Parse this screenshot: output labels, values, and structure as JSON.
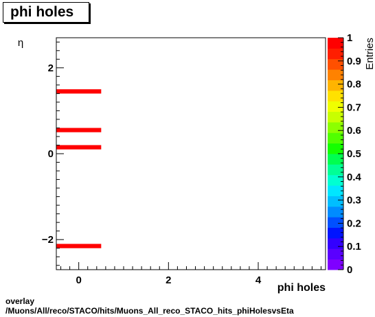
{
  "title": "phi holes",
  "footer": {
    "line1": "overlay",
    "line2": "/Muons/All/reco/STACO/hits/Muons_All_reco_STACO_hits_phiHolesvsEta"
  },
  "chart_data": {
    "type": "heatmap",
    "xlabel": "phi holes",
    "ylabel": "η",
    "zlabel": "Entries",
    "xlim": [
      -0.5,
      5.5
    ],
    "ylim": [
      -2.7,
      2.7
    ],
    "zlim": [
      0,
      1
    ],
    "x_ticks": [
      0,
      2,
      4
    ],
    "y_ticks": [
      -2,
      0,
      2
    ],
    "z_ticks": [
      0,
      0.1,
      0.2,
      0.3,
      0.4,
      0.5,
      0.6,
      0.7,
      0.8,
      0.9,
      1
    ],
    "bins": [
      {
        "x": [
          -0.5,
          0.5
        ],
        "y": [
          1.4,
          1.5
        ],
        "value": 1
      },
      {
        "x": [
          -0.5,
          0.5
        ],
        "y": [
          0.5,
          0.6
        ],
        "value": 1
      },
      {
        "x": [
          -0.5,
          0.5
        ],
        "y": [
          0.1,
          0.2
        ],
        "value": 1
      },
      {
        "x": [
          -0.5,
          0.5
        ],
        "y": [
          -2.2,
          -2.1
        ],
        "value": 1
      }
    ],
    "palette": [
      "#7f00ff",
      "#5a00ff",
      "#3300ff",
      "#0014ff",
      "#0050ff",
      "#008cff",
      "#00beff",
      "#00e6ff",
      "#00ffd2",
      "#00ff96",
      "#00ff50",
      "#14ff00",
      "#50ff00",
      "#8cff00",
      "#c8ff00",
      "#f0ff00",
      "#ffe100",
      "#ffb400",
      "#ff8200",
      "#ff5000",
      "#ff1e00",
      "#ff0000"
    ]
  }
}
